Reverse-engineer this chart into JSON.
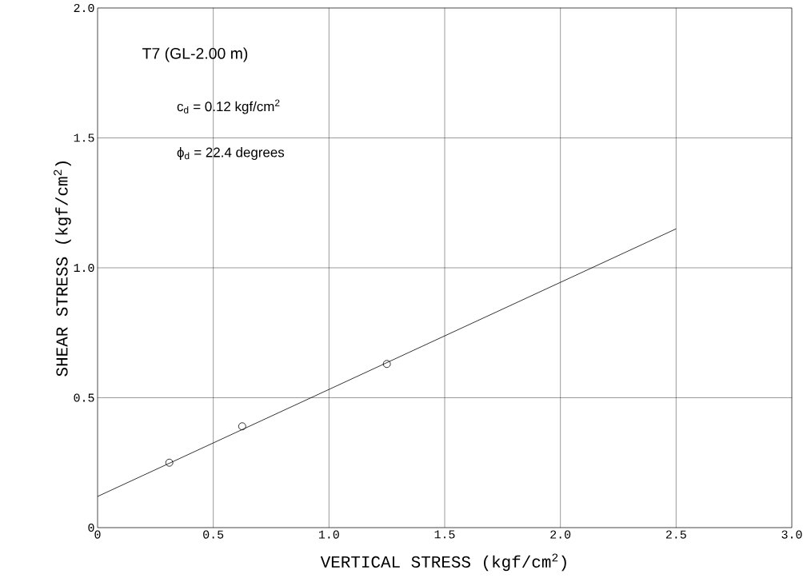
{
  "chart_data": {
    "type": "scatter",
    "xlabel": "VERTICAL STRESS (kgf/cm$^{2}$)",
    "ylabel": "SHEAR STRESS (kgf/cm$^{2}$)",
    "annotations": [
      "T7 (GL-2.00 m)",
      "c$_{d}$ = 0.12 kgf/cm$^{2}$",
      "ϕ$_{d}$ = 22.4 degrees"
    ],
    "xlim": [
      0,
      3.0
    ],
    "ylim": [
      0,
      2.0
    ],
    "xticks": [
      0,
      0.5,
      {
        "value": 1,
        "label": "1.0"
      },
      1.5,
      {
        "value": 2,
        "label": "2.0"
      },
      2.5,
      {
        "value": 3,
        "label": "3.0"
      }
    ],
    "yticks": [
      0,
      0.5,
      {
        "value": 1,
        "label": "1.0"
      },
      1.5,
      {
        "value": 2,
        "label": "2.0"
      }
    ],
    "grid": true,
    "series": [
      {
        "marker": "circle",
        "color": "#000000",
        "x": [
          0.31,
          0.625,
          1.25
        ],
        "values": [
          0.25,
          0.39,
          0.63
        ]
      },
      {
        "type": "line",
        "marker": "none",
        "color": "#000000",
        "x": [
          0,
          2.5
        ],
        "values": [
          0.12,
          1.15
        ]
      }
    ]
  }
}
